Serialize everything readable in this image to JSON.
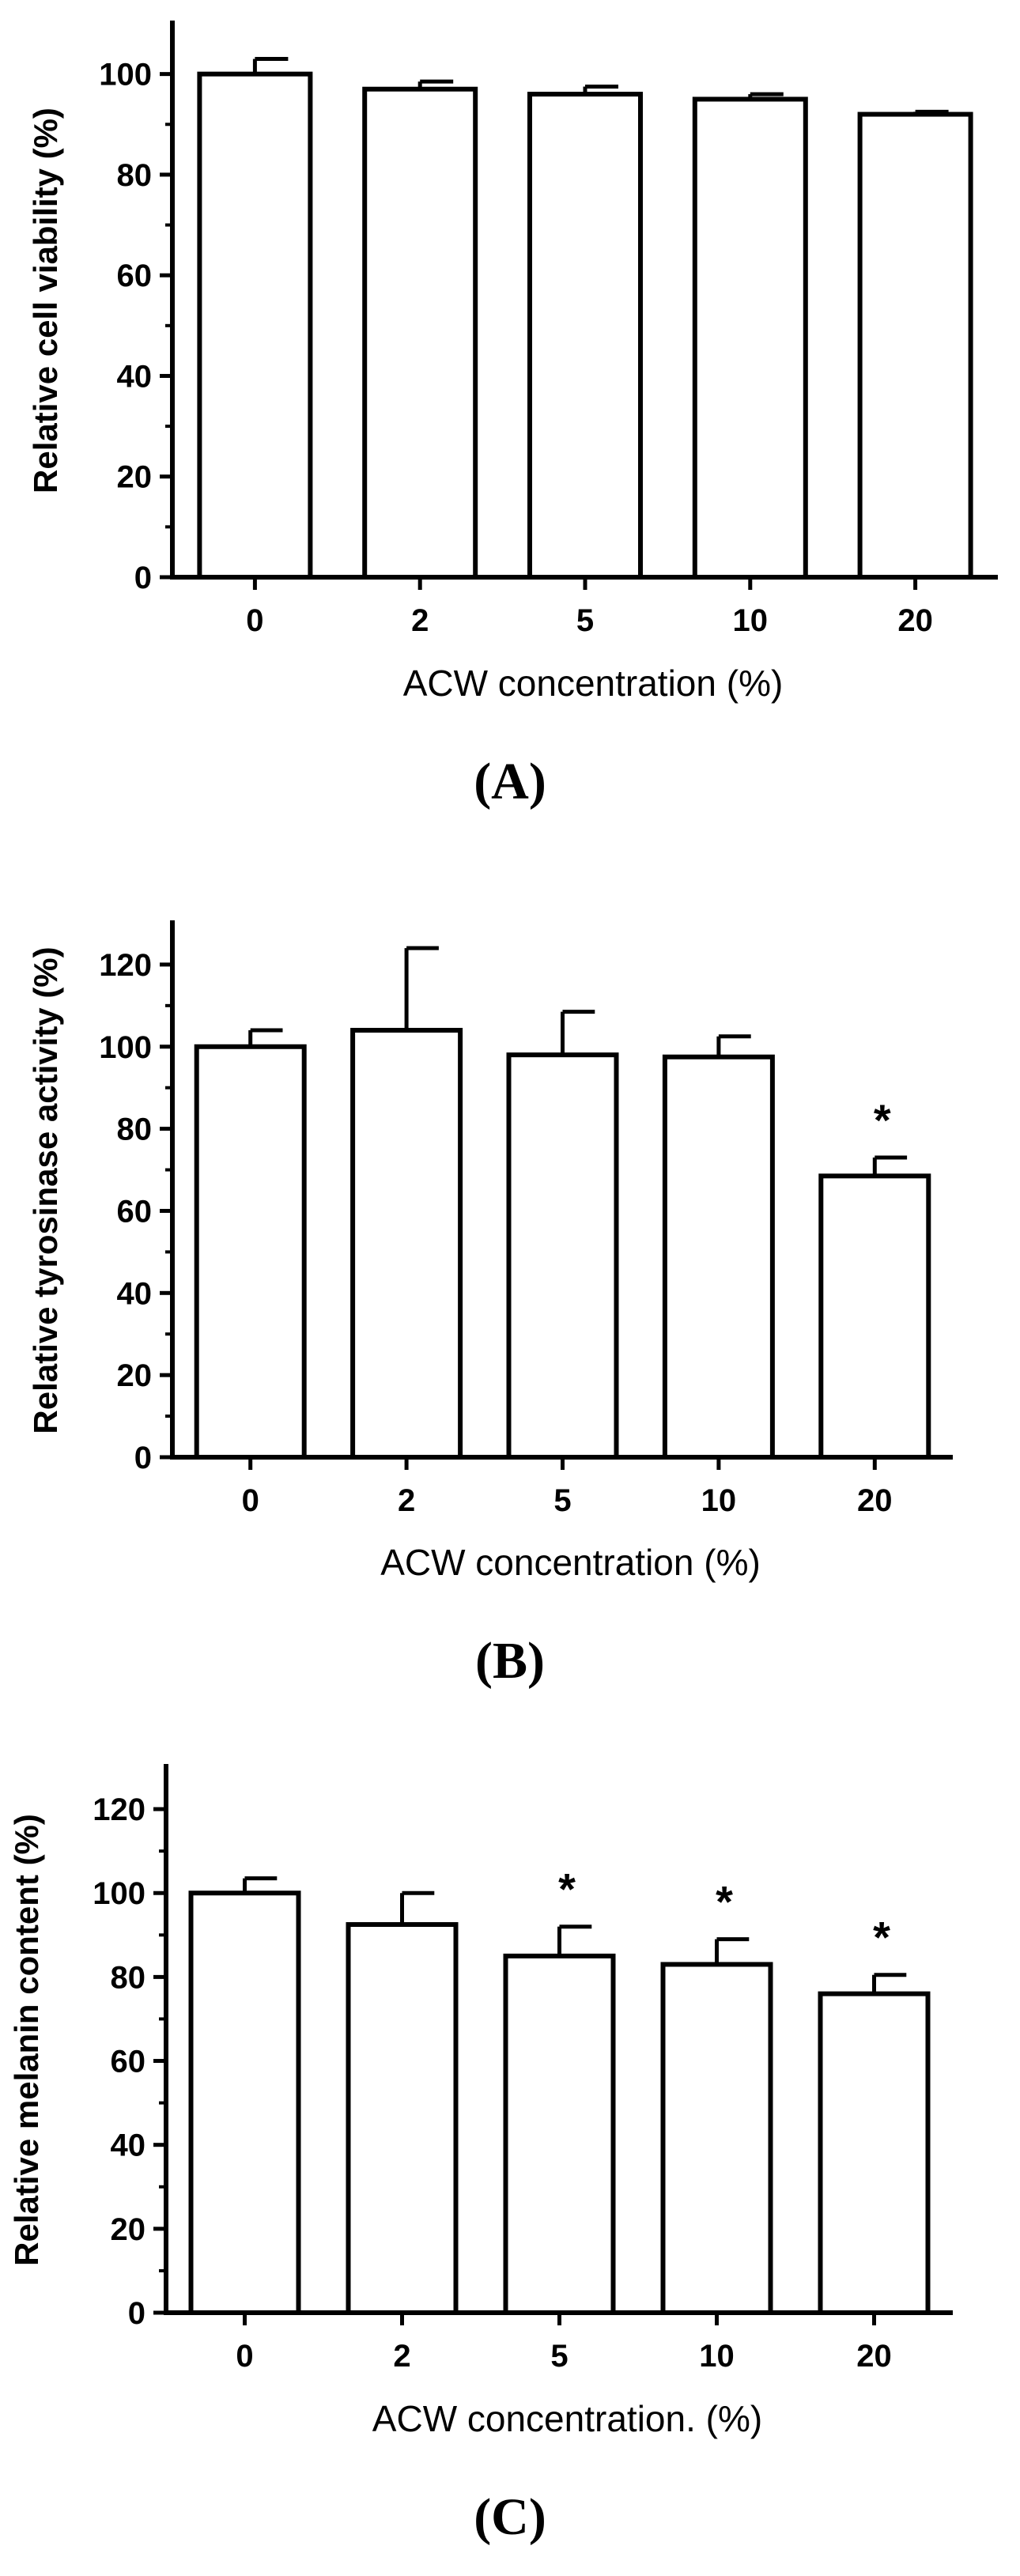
{
  "chart_data": [
    {
      "panel_label": "(A)",
      "type": "bar",
      "categories": [
        "0",
        "2",
        "5",
        "10",
        "20"
      ],
      "values": [
        100,
        97,
        96,
        95,
        92
      ],
      "errors": [
        3,
        1.5,
        1.5,
        1,
        0.5
      ],
      "significance": [
        "",
        "",
        "",
        "",
        ""
      ],
      "ylim": [
        0,
        110
      ],
      "yticks": [
        "0",
        "20",
        "40",
        "60",
        "80",
        "100"
      ],
      "ylabel": "Relative cell viability (%)",
      "xlabel": "ACW  concentration (%)"
    },
    {
      "panel_label": "(B)",
      "type": "bar",
      "categories": [
        "0",
        "2",
        "5",
        "10",
        "20"
      ],
      "values": [
        100,
        104,
        98,
        97.5,
        68.5
      ],
      "errors": [
        4,
        20,
        10.5,
        5,
        4.5
      ],
      "significance": [
        "",
        "",
        "",
        "",
        "*"
      ],
      "ylim": [
        0,
        130
      ],
      "yticks": [
        "0",
        "20",
        "40",
        "60",
        "80",
        "100",
        "120"
      ],
      "ylabel": "Relative  tyrosinase activity (%)",
      "xlabel": "ACW  concentration (%)"
    },
    {
      "panel_label": "(C)",
      "type": "bar",
      "categories": [
        "0",
        "2",
        "5",
        "10",
        "20"
      ],
      "values": [
        100,
        92.5,
        85,
        83,
        76
      ],
      "errors": [
        3.5,
        7.5,
        7,
        6,
        4.5
      ],
      "significance": [
        "",
        "",
        "*",
        "*",
        "*"
      ],
      "ylim": [
        0,
        130
      ],
      "yticks": [
        "0",
        "20",
        "40",
        "60",
        "80",
        "100",
        "120"
      ],
      "ylabel": "Relative melanin content (%)",
      "xlabel": "ACW  concentration. (%)"
    }
  ]
}
